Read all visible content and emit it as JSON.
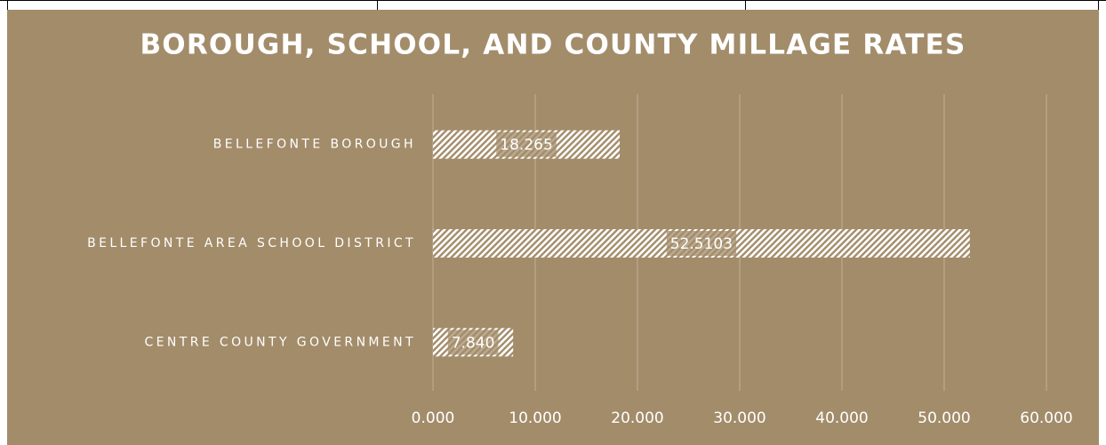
{
  "chart_data": {
    "type": "bar",
    "orientation": "horizontal",
    "title": "BOROUGH, SCHOOL, AND COUNTY MILLAGE RATES",
    "categories": [
      "BELLEFONTE BOROUGH",
      "BELLEFONTE AREA SCHOOL DISTRICT",
      "CENTRE COUNTY GOVERNMENT"
    ],
    "values": [
      18.265,
      52.5103,
      7.84
    ],
    "value_labels": [
      "18.265",
      "52.5103",
      "7.840"
    ],
    "color": "#ffffff",
    "background": "#a38c6a",
    "xlim": [
      0,
      60
    ],
    "xticks": [
      {
        "value": 0,
        "label": "0.000"
      },
      {
        "value": 10,
        "label": "10.000"
      },
      {
        "value": 20,
        "label": "20.000"
      },
      {
        "value": 30,
        "label": "30.000"
      },
      {
        "value": 40,
        "label": "40.000"
      },
      {
        "value": 50,
        "label": "50.000"
      },
      {
        "value": 60,
        "label": "60.000"
      }
    ],
    "grid": true
  }
}
